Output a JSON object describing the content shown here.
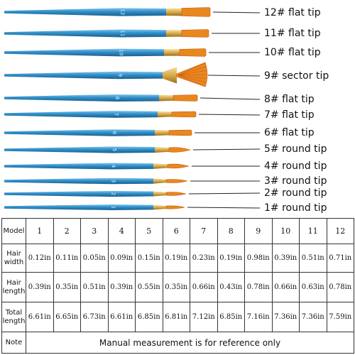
{
  "brushes": [
    {
      "number": "12",
      "label": "12# flat tip",
      "tip": "flat"
    },
    {
      "number": "11",
      "label": "11# flat tip",
      "tip": "flat"
    },
    {
      "number": "10",
      "label": "10# flat tip",
      "tip": "flat"
    },
    {
      "number": "9",
      "label": "9# sector tip",
      "tip": "fan"
    },
    {
      "number": "8",
      "label": "8# flat tip",
      "tip": "flat"
    },
    {
      "number": "7",
      "label": "7# flat tip",
      "tip": "flat"
    },
    {
      "number": "6",
      "label": "6# flat tip",
      "tip": "flat"
    },
    {
      "number": "5",
      "label": "5# round tip",
      "tip": "round"
    },
    {
      "number": "4",
      "label": "4# round tip",
      "tip": "round"
    },
    {
      "number": "3",
      "label": "3# round tip",
      "tip": "round"
    },
    {
      "number": "2",
      "label": "2# round tip",
      "tip": "round"
    },
    {
      "number": "1",
      "label": "1# round tip",
      "tip": "round"
    }
  ],
  "colors": {
    "handle": "#2f8fc9",
    "handle_highlight": "#7cc4ee",
    "ferrule": "#d9a94a",
    "ferrule_dark": "#9c6f1e",
    "bristle": "#e8871e",
    "bristle_tip": "#c85a10"
  },
  "table": {
    "model_header": "Model",
    "models": [
      "1",
      "2",
      "3",
      "4",
      "5",
      "6",
      "7",
      "8",
      "9",
      "10",
      "11",
      "12"
    ],
    "rows": [
      {
        "header": "Hair width",
        "values": [
          "0.12in",
          "0.11in",
          "0.05in",
          "0.09in",
          "0.15in",
          "0.19in",
          "0.23in",
          "0.19in",
          "0.98in",
          "0.39in",
          "0.51in",
          "0.71in"
        ]
      },
      {
        "header": "Hair length",
        "values": [
          "0.39in",
          "0.35in",
          "0.51in",
          "0.39in",
          "0.55in",
          "0.35in",
          "0.66in",
          "0.43in",
          "0.78in",
          "0.66in",
          "0.63in",
          "0.78in"
        ]
      },
      {
        "header": "Total length",
        "values": [
          "6.61in",
          "6.65in",
          "6.73in",
          "6.61in",
          "6.85in",
          "6.81in",
          "7.12in",
          "6.85in",
          "7.16in",
          "7.36in",
          "7.36in",
          "7.59in"
        ]
      }
    ],
    "note_header": "Note",
    "note_text": "Manual measurement is for reference only"
  }
}
